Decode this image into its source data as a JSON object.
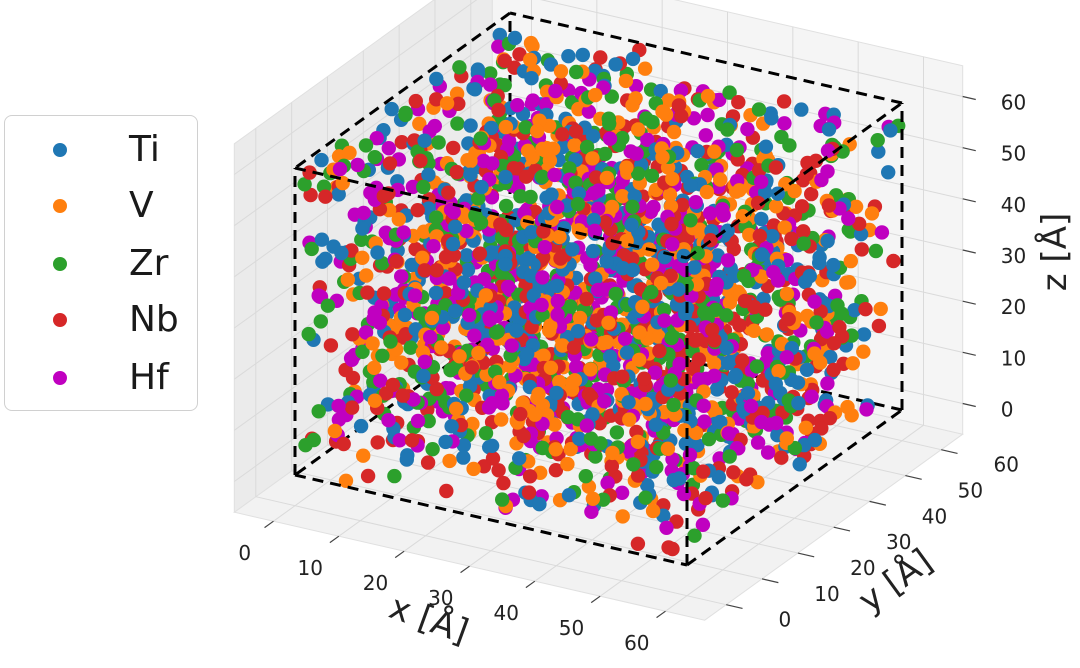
{
  "chart_data": {
    "type": "scatter",
    "projection": "3d",
    "title": "",
    "xlabel": "x [Å]",
    "ylabel": "y [Å]",
    "zlabel": "z [Å]",
    "xlim": [
      0,
      60
    ],
    "ylim": [
      0,
      60
    ],
    "zlim": [
      0,
      60
    ],
    "xticks": [
      "0",
      "10",
      "20",
      "30",
      "40",
      "50",
      "60"
    ],
    "yticks": [
      "0",
      "10",
      "20",
      "30",
      "40",
      "50",
      "60"
    ],
    "zticks": [
      "0",
      "10",
      "20",
      "30",
      "40",
      "50",
      "60"
    ],
    "grid": true,
    "legend_position": "left",
    "bounding_box": "dashed black cube from 0 to 60 on all axes",
    "distribution": "uniform random fill of the cube",
    "series": [
      {
        "name": "Ti",
        "color": "#1f77b4"
      },
      {
        "name": "V",
        "color": "#ff7f0e"
      },
      {
        "name": "Zr",
        "color": "#2ca02c"
      },
      {
        "name": "Nb",
        "color": "#d62728"
      },
      {
        "name": "Hf",
        "color": "#c000c0"
      }
    ]
  }
}
